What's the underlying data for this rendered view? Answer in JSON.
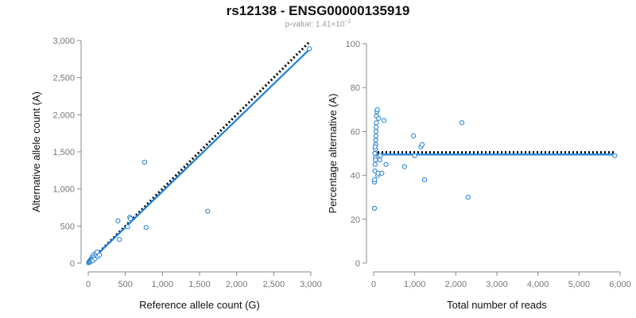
{
  "title": "rs12138 - ENSG00000135919",
  "subtitle_prefix": "p-value: 1.41",
  "subtitle_times": "×10",
  "subtitle_exp": "−2",
  "colors": {
    "points": "#1f7fd6",
    "fit_line": "#1f7fd6",
    "reference_line": "#000000",
    "axis": "#888888",
    "tick_text": "#777777",
    "label_text": "#111111"
  },
  "chart_data": [
    {
      "type": "scatter",
      "title": "",
      "xlabel": "Reference allele count (G)",
      "ylabel": "Alternative allele count (A)",
      "xlim": [
        0,
        3000
      ],
      "ylim": [
        0,
        3000
      ],
      "xticks": [
        0,
        500,
        1000,
        1500,
        2000,
        2500,
        3000
      ],
      "xtick_labels": [
        "0",
        "500",
        "1,000",
        "1,500",
        "2,000",
        "2,500",
        "3,000"
      ],
      "yticks": [
        0,
        500,
        1000,
        1500,
        2000,
        2500,
        3000
      ],
      "ytick_labels": [
        "0",
        "500",
        "1,000",
        "1,500",
        "2,000",
        "2,500",
        "3,000"
      ],
      "grid": false,
      "points": [
        {
          "x": 5,
          "y": 5
        },
        {
          "x": 10,
          "y": 15
        },
        {
          "x": 15,
          "y": 8
        },
        {
          "x": 20,
          "y": 30
        },
        {
          "x": 25,
          "y": 20
        },
        {
          "x": 30,
          "y": 45
        },
        {
          "x": 35,
          "y": 25
        },
        {
          "x": 40,
          "y": 55
        },
        {
          "x": 45,
          "y": 40
        },
        {
          "x": 50,
          "y": 70
        },
        {
          "x": 55,
          "y": 50
        },
        {
          "x": 60,
          "y": 90
        },
        {
          "x": 65,
          "y": 35
        },
        {
          "x": 70,
          "y": 110
        },
        {
          "x": 80,
          "y": 80
        },
        {
          "x": 90,
          "y": 60
        },
        {
          "x": 100,
          "y": 130
        },
        {
          "x": 110,
          "y": 100
        },
        {
          "x": 120,
          "y": 150
        },
        {
          "x": 130,
          "y": 90
        },
        {
          "x": 150,
          "y": 110
        },
        {
          "x": 400,
          "y": 570
        },
        {
          "x": 420,
          "y": 320
        },
        {
          "x": 530,
          "y": 490
        },
        {
          "x": 560,
          "y": 620
        },
        {
          "x": 570,
          "y": 600
        },
        {
          "x": 760,
          "y": 1360
        },
        {
          "x": 780,
          "y": 480
        },
        {
          "x": 1610,
          "y": 700
        },
        {
          "x": 2980,
          "y": 2890
        }
      ],
      "fit_line": [
        [
          0,
          0
        ],
        [
          2980,
          2880
        ]
      ],
      "reference_line": [
        [
          0,
          0
        ],
        [
          2980,
          2980
        ]
      ]
    },
    {
      "type": "scatter",
      "title": "",
      "xlabel": "Total number of reads",
      "ylabel": "Percentage alternative (A)",
      "xlim": [
        0,
        6000
      ],
      "ylim": [
        0,
        100
      ],
      "xticks": [
        0,
        1000,
        2000,
        3000,
        4000,
        5000,
        6000
      ],
      "xtick_labels": [
        "0",
        "1,000",
        "2,000",
        "3,000",
        "4,000",
        "5,000",
        "6,000"
      ],
      "yticks": [
        0,
        20,
        40,
        60,
        80,
        100
      ],
      "ytick_labels": [
        "0",
        "20",
        "40",
        "60",
        "80",
        "100"
      ],
      "grid": false,
      "points": [
        {
          "x": 20,
          "y": 25
        },
        {
          "x": 20,
          "y": 37
        },
        {
          "x": 25,
          "y": 38
        },
        {
          "x": 30,
          "y": 42
        },
        {
          "x": 35,
          "y": 45
        },
        {
          "x": 40,
          "y": 48
        },
        {
          "x": 40,
          "y": 50
        },
        {
          "x": 45,
          "y": 52
        },
        {
          "x": 50,
          "y": 54
        },
        {
          "x": 50,
          "y": 56
        },
        {
          "x": 55,
          "y": 58
        },
        {
          "x": 60,
          "y": 60
        },
        {
          "x": 60,
          "y": 62
        },
        {
          "x": 65,
          "y": 64
        },
        {
          "x": 70,
          "y": 67
        },
        {
          "x": 80,
          "y": 69
        },
        {
          "x": 90,
          "y": 70
        },
        {
          "x": 100,
          "y": 40
        },
        {
          "x": 110,
          "y": 41
        },
        {
          "x": 120,
          "y": 66
        },
        {
          "x": 150,
          "y": 47
        },
        {
          "x": 160,
          "y": 49
        },
        {
          "x": 200,
          "y": 41
        },
        {
          "x": 250,
          "y": 65
        },
        {
          "x": 300,
          "y": 45
        },
        {
          "x": 30,
          "y": 50
        },
        {
          "x": 35,
          "y": 53
        },
        {
          "x": 45,
          "y": 47
        },
        {
          "x": 750,
          "y": 44
        },
        {
          "x": 970,
          "y": 58
        },
        {
          "x": 1000,
          "y": 49
        },
        {
          "x": 1150,
          "y": 53
        },
        {
          "x": 1180,
          "y": 54
        },
        {
          "x": 1240,
          "y": 38
        },
        {
          "x": 2150,
          "y": 64
        },
        {
          "x": 2300,
          "y": 30
        },
        {
          "x": 5870,
          "y": 49
        }
      ],
      "fit_line": [
        [
          0,
          49.5
        ],
        [
          5870,
          49.5
        ]
      ],
      "reference_line": [
        [
          0,
          50.5
        ],
        [
          5870,
          50.5
        ]
      ]
    }
  ]
}
